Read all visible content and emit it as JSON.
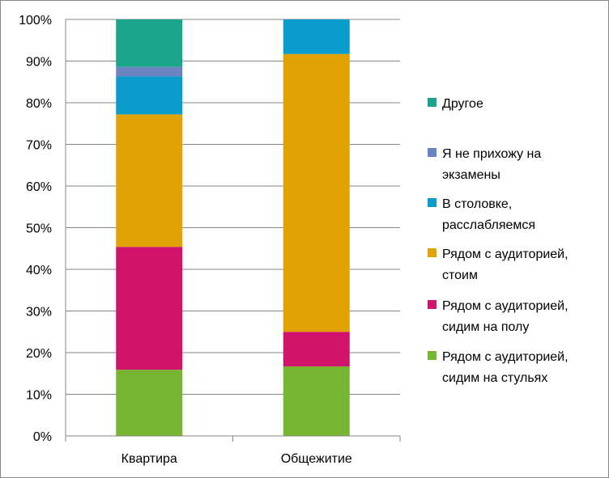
{
  "chart_data": {
    "type": "bar",
    "stacked": true,
    "percent": true,
    "categories": [
      "Квартира",
      "Общежитие"
    ],
    "ylim": [
      0,
      100
    ],
    "yticks": [
      "0%",
      "10%",
      "20%",
      "30%",
      "40%",
      "50%",
      "60%",
      "70%",
      "80%",
      "90%",
      "100%"
    ],
    "grid": true,
    "legend_position": "right",
    "series": [
      {
        "name": "Рядом с аудиторией, сидим на стульях",
        "lines": [
          "Рядом с аудиторией,",
          "сидим на стульях"
        ],
        "color": "#77B632",
        "values": [
          15.9,
          16.7
        ]
      },
      {
        "name": "Рядом с аудиторией, сидим на полу",
        "lines": [
          "Рядом с аудиторией,",
          "сидим на полу"
        ],
        "color": "#D0136B",
        "values": [
          29.5,
          8.3
        ]
      },
      {
        "name": "Рядом с аудиторией, стоим",
        "lines": [
          "Рядом с аудиторией,",
          "стоим"
        ],
        "color": "#E1A304",
        "values": [
          31.8,
          66.7
        ]
      },
      {
        "name": "В столовке, расслабляемся",
        "lines": [
          "В столовке,",
          "расслабляемся"
        ],
        "color": "#0A9CCB",
        "values": [
          9.1,
          8.3
        ]
      },
      {
        "name": "Я не прихожу на экзамены",
        "lines": [
          "Я не прихожу на",
          "экзамены"
        ],
        "color": "#6A84C2",
        "values": [
          2.3,
          0
        ]
      },
      {
        "name": "Другое",
        "lines": [
          "Другое"
        ],
        "color": "#1BA38C",
        "values": [
          11.4,
          0
        ]
      }
    ]
  }
}
